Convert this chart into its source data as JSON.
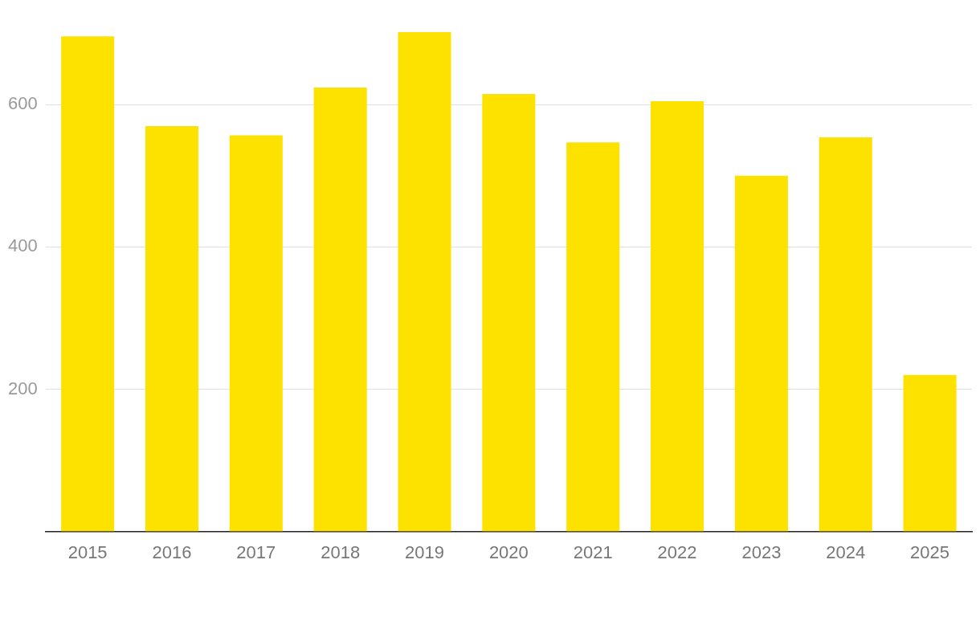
{
  "chart_data": {
    "type": "bar",
    "categories": [
      "2015",
      "2016",
      "2017",
      "2018",
      "2019",
      "2020",
      "2021",
      "2022",
      "2023",
      "2024",
      "2025"
    ],
    "values": [
      696,
      570,
      557,
      624,
      702,
      615,
      547,
      605,
      500,
      554,
      220
    ],
    "color": "#fde200",
    "ylim": [
      0,
      702
    ],
    "yticks": [
      200,
      400,
      600
    ],
    "grid": "y",
    "legend": false
  }
}
